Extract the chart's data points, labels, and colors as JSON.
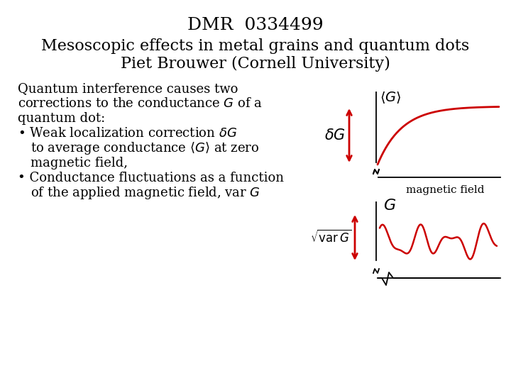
{
  "title_line1": "DMR  0334499",
  "title_line2": "Mesoscopic effects in metal grains and quantum dots",
  "title_line3": "Piet Brouwer (Cornell University)",
  "bg_color": "#ffffff",
  "text_color": "#000000",
  "red_color": "#cc0000",
  "title_fontsize": 18,
  "subtitle_fontsize": 16,
  "body_fontsize": 13,
  "small_fontsize": 11
}
